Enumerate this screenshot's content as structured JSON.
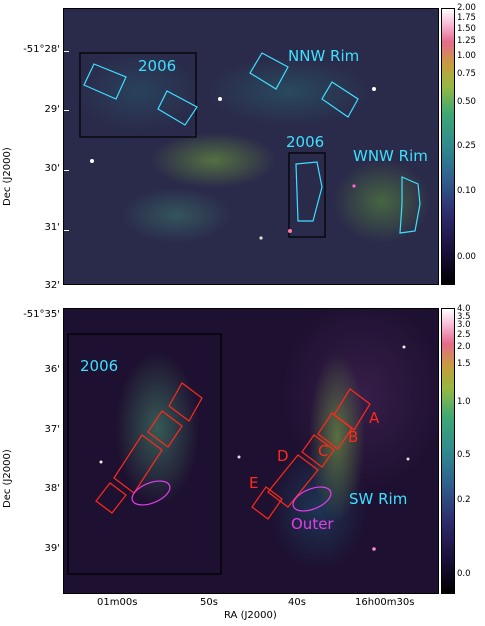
{
  "top_panel": {
    "y_ticks": [
      "-51°28'",
      "29'",
      "30'",
      "31'",
      "32'"
    ],
    "colorbar_ticks": [
      "2.00",
      "1.75",
      "1.50",
      "1.25",
      "1.00",
      "0.75",
      "0.50",
      "0.25",
      "0.10",
      "0.00"
    ],
    "annotations": {
      "box_2006_a": "2006",
      "box_2006_b": "2006",
      "nnw_rim": "NNW Rim",
      "wnw_rim": "WNW Rim"
    }
  },
  "bottom_panel": {
    "y_ticks": [
      "-51°35'",
      "36'",
      "37'",
      "38'",
      "39'"
    ],
    "colorbar_ticks": [
      "4.0",
      "3.5",
      "3.0",
      "2.5",
      "2.0",
      "1.5",
      "1.0",
      "0.5",
      "0.2",
      "0.0"
    ],
    "annotations": {
      "box_2006": "2006",
      "sw_rim": "SW Rim",
      "outer": "Outer",
      "A": "A",
      "B": "B",
      "C": "C",
      "D": "D",
      "E": "E"
    }
  },
  "x_ticks": [
    "01m00s",
    "50s",
    "40s",
    "16h00m30s"
  ],
  "axis_titles": {
    "y": "Dec (J2000)",
    "x": "RA (J2000)"
  },
  "colors": {
    "cyan_annotation": "#3fe0ff",
    "red_annotation": "#ff2a1a",
    "magenta_annotation": "#e23ee8"
  }
}
